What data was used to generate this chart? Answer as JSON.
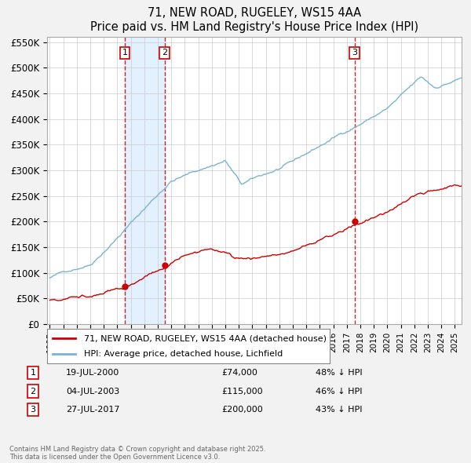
{
  "title": "71, NEW ROAD, RUGELEY, WS15 4AA",
  "subtitle": "Price paid vs. HM Land Registry's House Price Index (HPI)",
  "legend_line1": "71, NEW ROAD, RUGELEY, WS15 4AA (detached house)",
  "legend_line2": "HPI: Average price, detached house, Lichfield",
  "transactions": [
    {
      "num": 1,
      "date_label": "19-JUL-2000",
      "year": 2000.55,
      "price": 74000,
      "pct": "48% ↓ HPI"
    },
    {
      "num": 2,
      "date_label": "04-JUL-2003",
      "year": 2003.51,
      "price": 115000,
      "pct": "46% ↓ HPI"
    },
    {
      "num": 3,
      "date_label": "27-JUL-2017",
      "year": 2017.57,
      "price": 200000,
      "pct": "43% ↓ HPI"
    }
  ],
  "hpi_color": "#7ab3d4",
  "price_color": "#cc0000",
  "vline_color": "#cc0000",
  "shade_color": "#ddeeff",
  "ylim": [
    0,
    560000
  ],
  "xlim": [
    1994.8,
    2025.5
  ],
  "yticks": [
    0,
    50000,
    100000,
    150000,
    200000,
    250000,
    300000,
    350000,
    400000,
    450000,
    500000,
    550000
  ],
  "ytick_labels": [
    "£0",
    "£50K",
    "£100K",
    "£150K",
    "£200K",
    "£250K",
    "£300K",
    "£350K",
    "£400K",
    "£450K",
    "£500K",
    "£550K"
  ],
  "footnote": "Contains HM Land Registry data © Crown copyright and database right 2025.\nThis data is licensed under the Open Government Licence v3.0.",
  "background_color": "#f2f2f2"
}
